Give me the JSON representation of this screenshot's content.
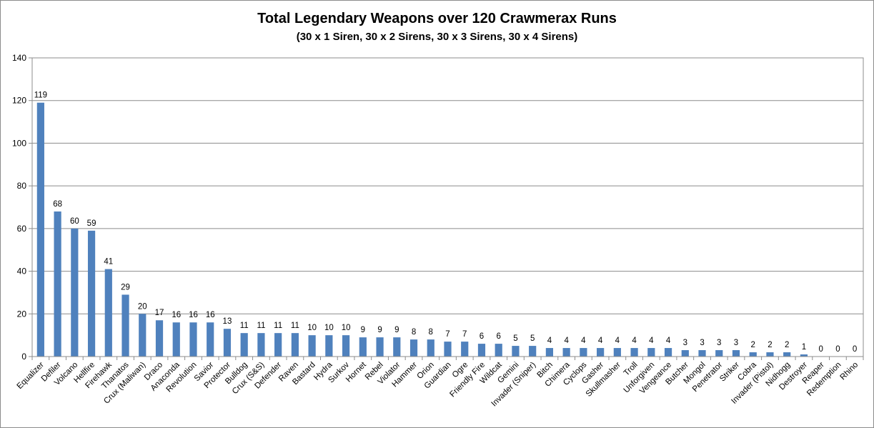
{
  "chart_data": {
    "type": "bar",
    "title": "Total Legendary Weapons over 120 Crawmerax Runs",
    "subtitle": "(30 x 1 Siren, 30 x 2 Sirens, 30 x 3 Sirens, 30 x 4 Sirens)",
    "xlabel": "",
    "ylabel": "",
    "ylim": [
      0,
      140
    ],
    "yticks": [
      0,
      20,
      40,
      60,
      80,
      100,
      120,
      140
    ],
    "grid": true,
    "legend": "none",
    "bar_color": "#4f81bd",
    "categories": [
      "Equalizer",
      "Defiler",
      "Volcano",
      "Hellfire",
      "Firehawk",
      "Thanatos",
      "Crux (Maliwan)",
      "Draco",
      "Anaconda",
      "Revolution",
      "Savior",
      "Protector",
      "Bulldog",
      "Crux (S&S)",
      "Defender",
      "Raven",
      "Bastard",
      "Hydra",
      "Surkov",
      "Hornet",
      "Rebel",
      "Violator",
      "Hammer",
      "Orion",
      "Guardian",
      "Ogre",
      "Friendly Fire",
      "Wildcat",
      "Gemini",
      "Invader (Sniper)",
      "Bitch",
      "Chimera",
      "Cyclops",
      "Gasher",
      "Skullmasher",
      "Troll",
      "Unforgiven",
      "Vengeance",
      "Butcher",
      "Mongol",
      "Penetrator",
      "Striker",
      "Cobra",
      "Invader (Pistol)",
      "Nidhogg",
      "Destroyer",
      "Reaper",
      "Redemption",
      "Rhino"
    ],
    "values": [
      119,
      68,
      60,
      59,
      41,
      29,
      20,
      17,
      16,
      16,
      16,
      13,
      11,
      11,
      11,
      11,
      10,
      10,
      10,
      9,
      9,
      9,
      8,
      8,
      7,
      7,
      6,
      6,
      5,
      5,
      4,
      4,
      4,
      4,
      4,
      4,
      4,
      4,
      3,
      3,
      3,
      3,
      2,
      2,
      2,
      1,
      0,
      0,
      0
    ]
  }
}
